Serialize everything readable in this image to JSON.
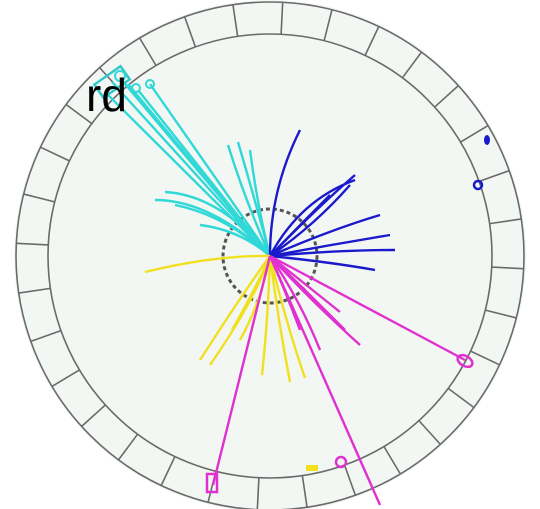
{
  "label": "rd"
}
